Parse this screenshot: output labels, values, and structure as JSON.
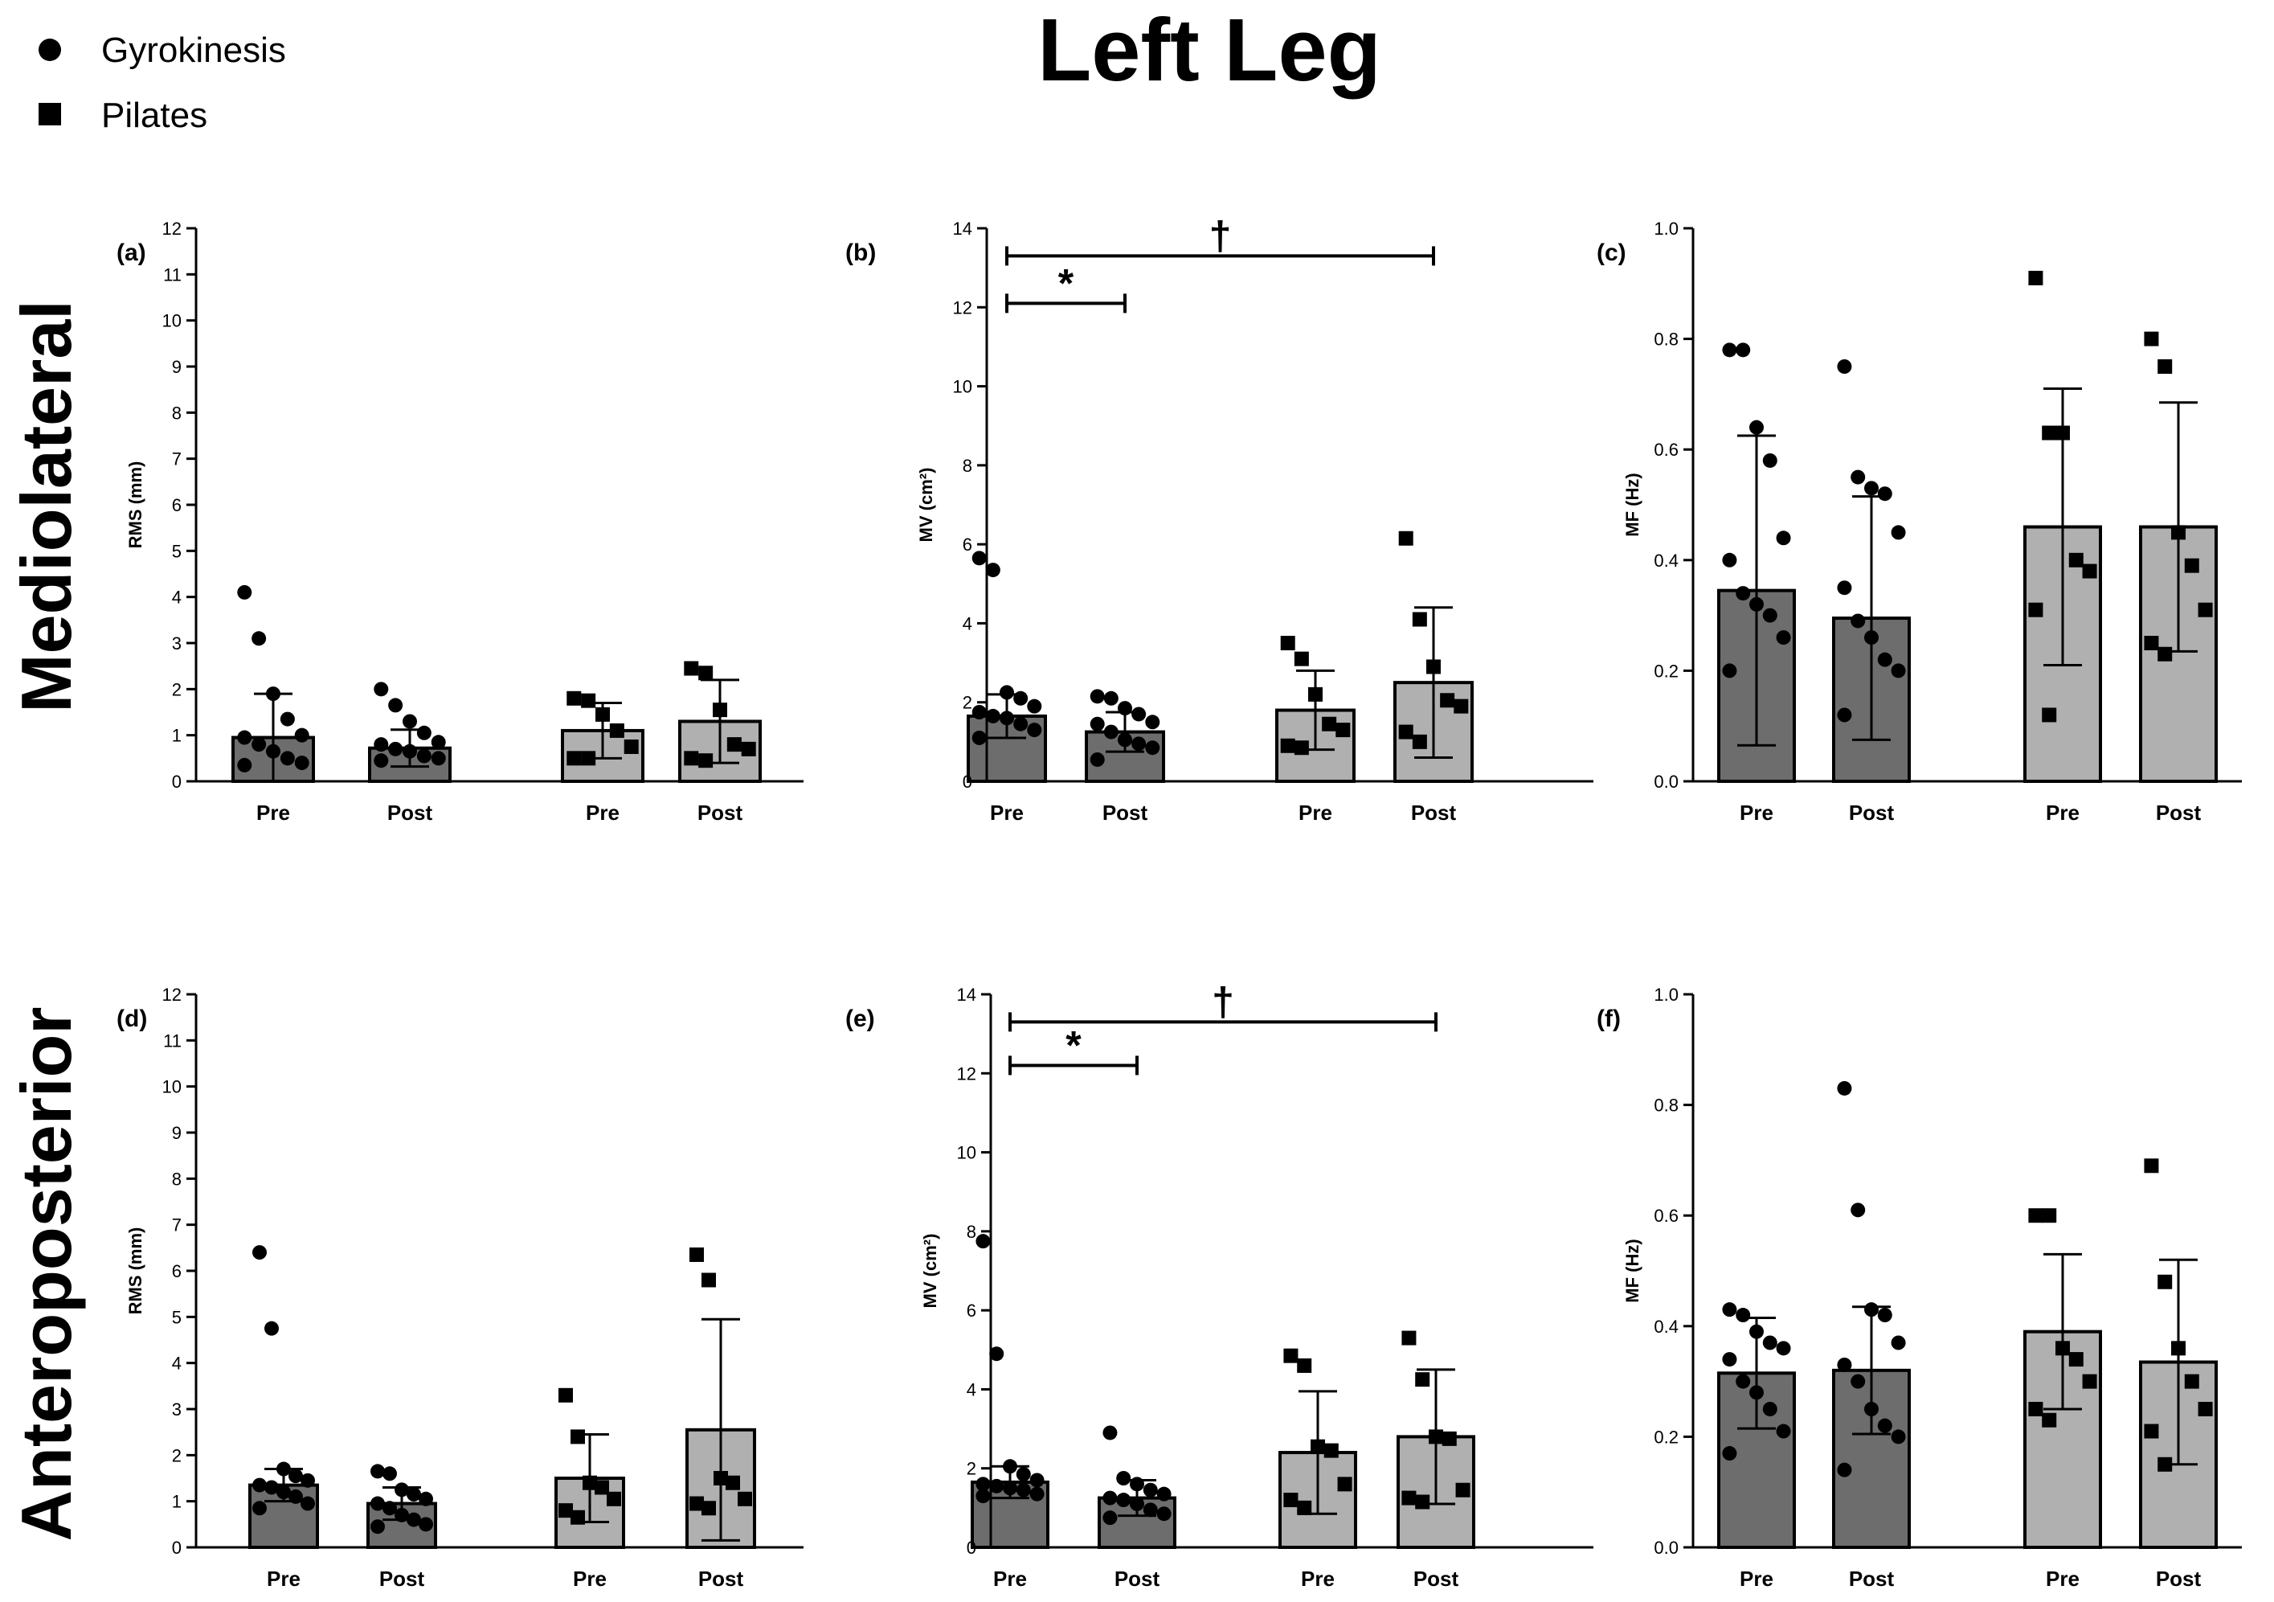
{
  "figure": {
    "title": "Left Leg",
    "row_labels": [
      "Mediolateral",
      "Anteroposterior"
    ],
    "legend": [
      {
        "label": "Gyrokinesis",
        "marker": "circle"
      },
      {
        "label": "Pilates",
        "marker": "square"
      }
    ],
    "colors": {
      "gyrokinesis_bar": "#6d6d6d",
      "pilates_bar": "#b0b0b0",
      "marker": "#000000"
    }
  },
  "chart_data": [
    {
      "type": "bar",
      "panel": "(a)",
      "ylabel": "RMS (mm)",
      "ylim": [
        0,
        12
      ],
      "yticks": [
        "0",
        "1",
        "2",
        "3",
        "4",
        "5",
        "6",
        "7",
        "8",
        "9",
        "10",
        "11",
        "12"
      ],
      "categories": [
        "Pre",
        "Post",
        "Pre",
        "Post"
      ],
      "groups": [
        "Gyrokinesis",
        "Gyrokinesis",
        "Pilates",
        "Pilates"
      ],
      "means": [
        0.95,
        0.72,
        1.1,
        1.3
      ],
      "sd": [
        0.95,
        0.4,
        0.6,
        0.9
      ],
      "points": [
        [
          4.1,
          3.1,
          1.9,
          1.35,
          1.0,
          0.95,
          0.8,
          0.65,
          0.5,
          0.4,
          0.35
        ],
        [
          2.0,
          1.65,
          1.3,
          1.05,
          0.85,
          0.8,
          0.7,
          0.65,
          0.55,
          0.5,
          0.45
        ],
        [
          1.8,
          1.75,
          1.45,
          1.1,
          0.75,
          0.5,
          0.5
        ],
        [
          2.45,
          2.35,
          1.55,
          0.8,
          0.7,
          0.5,
          0.45
        ]
      ],
      "significance": []
    },
    {
      "type": "bar",
      "panel": "(b)",
      "ylabel": "MV (cm²)",
      "ylim": [
        0,
        14
      ],
      "yticks": [
        "0",
        "2",
        "4",
        "6",
        "8",
        "10",
        "12",
        "14"
      ],
      "categories": [
        "Pre",
        "Post",
        "Pre",
        "Post"
      ],
      "groups": [
        "Gyrokinesis",
        "Gyrokinesis",
        "Pilates",
        "Pilates"
      ],
      "means": [
        1.65,
        1.25,
        1.8,
        2.5
      ],
      "sd": [
        0.55,
        0.5,
        1.0,
        1.9
      ],
      "points": [
        [
          5.65,
          5.35,
          2.25,
          2.1,
          1.9,
          1.75,
          1.65,
          1.6,
          1.45,
          1.3,
          1.1
        ],
        [
          2.15,
          2.1,
          1.85,
          1.7,
          1.5,
          1.45,
          1.25,
          1.05,
          0.95,
          0.85,
          0.55
        ],
        [
          3.5,
          3.1,
          2.2,
          1.45,
          1.3,
          0.9,
          0.85
        ],
        [
          6.15,
          4.1,
          2.9,
          2.05,
          1.9,
          1.25,
          1.0
        ]
      ],
      "significance": [
        {
          "mark": "*",
          "from": 0,
          "to": 1,
          "y": 12.1
        },
        {
          "mark": "†",
          "from": 0,
          "to": 3,
          "y": 13.3
        }
      ]
    },
    {
      "type": "bar",
      "panel": "(c)",
      "ylabel": "MF (Hz)",
      "ylim": [
        0,
        1.0
      ],
      "yticks": [
        "0.0",
        "0.2",
        "0.4",
        "0.6",
        "0.8",
        "1.0"
      ],
      "categories": [
        "Pre",
        "Post",
        "Pre",
        "Post"
      ],
      "groups": [
        "Gyrokinesis",
        "Gyrokinesis",
        "Pilates",
        "Pilates"
      ],
      "means": [
        0.345,
        0.295,
        0.46,
        0.46
      ],
      "sd": [
        0.28,
        0.22,
        0.25,
        0.225
      ],
      "points": [
        [
          0.78,
          0.78,
          0.64,
          0.58,
          0.44,
          0.4,
          0.34,
          0.32,
          0.3,
          0.26,
          0.2
        ],
        [
          0.75,
          0.55,
          0.53,
          0.52,
          0.45,
          0.35,
          0.29,
          0.26,
          0.22,
          0.2,
          0.12
        ],
        [
          0.91,
          0.63,
          0.63,
          0.4,
          0.38,
          0.31,
          0.12
        ],
        [
          0.8,
          0.75,
          0.45,
          0.39,
          0.31,
          0.25,
          0.23
        ]
      ],
      "significance": []
    },
    {
      "type": "bar",
      "panel": "(d)",
      "ylabel": "RMS (mm)",
      "ylim": [
        0,
        12
      ],
      "yticks": [
        "0",
        "1",
        "2",
        "3",
        "4",
        "5",
        "6",
        "7",
        "8",
        "9",
        "10",
        "11",
        "12"
      ],
      "categories": [
        "Pre",
        "Post",
        "Pre",
        "Post"
      ],
      "groups": [
        "Gyrokinesis",
        "Gyrokinesis",
        "Pilates",
        "Pilates"
      ],
      "means": [
        1.35,
        0.95,
        1.5,
        2.55
      ],
      "sd": [
        0.35,
        0.35,
        0.95,
        2.4
      ],
      "points": [
        [
          6.4,
          4.75,
          1.7,
          1.55,
          1.45,
          1.35,
          1.3,
          1.2,
          1.1,
          0.95,
          0.85
        ],
        [
          1.65,
          1.6,
          1.25,
          1.15,
          1.05,
          0.95,
          0.85,
          0.7,
          0.6,
          0.5,
          0.45
        ],
        [
          3.3,
          2.4,
          1.4,
          1.3,
          1.05,
          0.8,
          0.65
        ],
        [
          6.35,
          5.8,
          1.5,
          1.4,
          1.05,
          0.95,
          0.85
        ]
      ],
      "significance": []
    },
    {
      "type": "bar",
      "panel": "(e)",
      "ylabel": "MV (cm²)",
      "ylim": [
        0,
        14
      ],
      "yticks": [
        "0",
        "2",
        "4",
        "6",
        "8",
        "10",
        "12",
        "14"
      ],
      "categories": [
        "Pre",
        "Post",
        "Pre",
        "Post"
      ],
      "groups": [
        "Gyrokinesis",
        "Gyrokinesis",
        "Pilates",
        "Pilates"
      ],
      "means": [
        1.65,
        1.25,
        2.4,
        2.8
      ],
      "sd": [
        0.4,
        0.45,
        1.55,
        1.7
      ],
      "points": [
        [
          7.75,
          4.9,
          2.05,
          1.85,
          1.7,
          1.6,
          1.55,
          1.5,
          1.45,
          1.35,
          1.3
        ],
        [
          2.9,
          1.75,
          1.6,
          1.45,
          1.35,
          1.25,
          1.2,
          1.1,
          0.95,
          0.85,
          0.75
        ],
        [
          4.85,
          4.6,
          2.55,
          2.45,
          1.6,
          1.2,
          1.0
        ],
        [
          5.3,
          4.25,
          2.8,
          2.75,
          1.45,
          1.25,
          1.15
        ]
      ],
      "significance": [
        {
          "mark": "*",
          "from": 0,
          "to": 1,
          "y": 12.2
        },
        {
          "mark": "†",
          "from": 0,
          "to": 3,
          "y": 13.3
        }
      ]
    },
    {
      "type": "bar",
      "panel": "(f)",
      "ylabel": "MF (Hz)",
      "ylim": [
        0,
        1.0
      ],
      "yticks": [
        "0.0",
        "0.2",
        "0.4",
        "0.6",
        "0.8",
        "1.0"
      ],
      "categories": [
        "Pre",
        "Post",
        "Pre",
        "Post"
      ],
      "groups": [
        "Gyrokinesis",
        "Gyrokinesis",
        "Pilates",
        "Pilates"
      ],
      "means": [
        0.315,
        0.32,
        0.39,
        0.335
      ],
      "sd": [
        0.1,
        0.115,
        0.14,
        0.185
      ],
      "points": [
        [
          0.43,
          0.42,
          0.39,
          0.37,
          0.36,
          0.34,
          0.3,
          0.28,
          0.25,
          0.21,
          0.17
        ],
        [
          0.83,
          0.61,
          0.43,
          0.42,
          0.37,
          0.33,
          0.3,
          0.25,
          0.22,
          0.2,
          0.14
        ],
        [
          0.6,
          0.6,
          0.36,
          0.34,
          0.3,
          0.25,
          0.23
        ],
        [
          0.69,
          0.48,
          0.36,
          0.3,
          0.25,
          0.21,
          0.15
        ]
      ],
      "significance": []
    }
  ]
}
